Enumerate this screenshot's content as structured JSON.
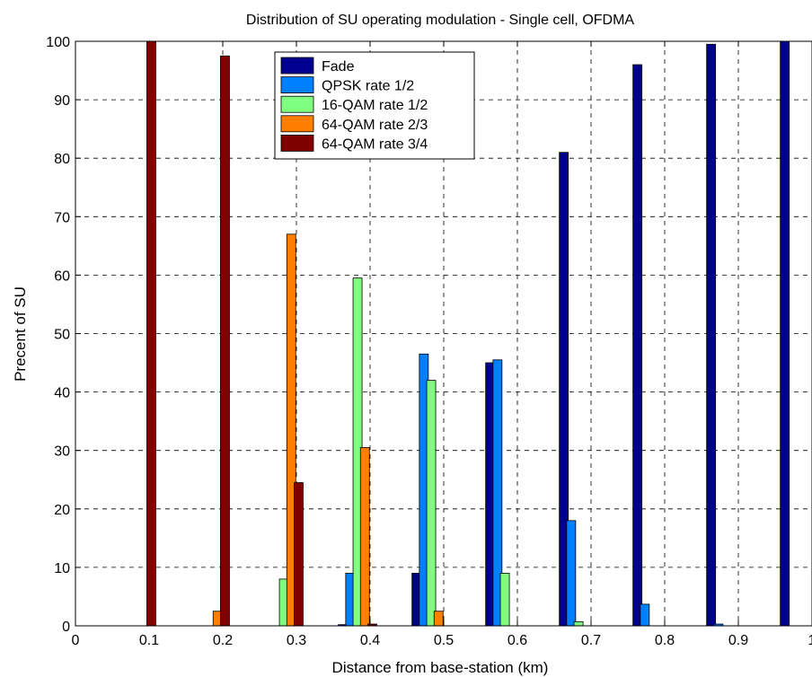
{
  "chart_data": {
    "type": "bar",
    "title": "Distribution of SU operating modulation - Single cell, OFDMA",
    "xlabel": "Distance from base-station (km)",
    "ylabel": "Precent of SU",
    "xlim": [
      0,
      1
    ],
    "ylim": [
      0,
      100
    ],
    "x_ticks": [
      "0",
      "0.1",
      "0.2",
      "0.3",
      "0.4",
      "0.5",
      "0.6",
      "0.7",
      "0.8",
      "0.9",
      "1"
    ],
    "y_ticks": [
      "0",
      "10",
      "20",
      "30",
      "40",
      "50",
      "60",
      "70",
      "80",
      "90",
      "100"
    ],
    "grid": true,
    "legend_position": "top-center",
    "categories": [
      0.083,
      0.183,
      0.283,
      0.383,
      0.483,
      0.583,
      0.683,
      0.783,
      0.883,
      0.983
    ],
    "series": [
      {
        "name": "Fade",
        "color": "#00008F",
        "values": [
          0,
          0,
          0,
          0.2,
          9,
          45,
          81,
          96,
          99.5,
          100
        ]
      },
      {
        "name": "QPSK rate 1/2",
        "color": "#0080FF",
        "values": [
          0,
          0,
          0,
          9,
          46.5,
          45.5,
          18,
          3.7,
          0.3,
          0
        ]
      },
      {
        "name": "16-QAM rate 1/2",
        "color": "#80FF80",
        "values": [
          0,
          0,
          8,
          59.5,
          42,
          9,
          0.7,
          0,
          0,
          0
        ]
      },
      {
        "name": "64-QAM rate 2/3",
        "color": "#FF8000",
        "values": [
          0,
          2.5,
          67,
          30.5,
          2.5,
          0,
          0,
          0,
          0,
          0
        ]
      },
      {
        "name": "64-QAM rate 3/4",
        "color": "#800000",
        "values": [
          100,
          97.5,
          24.5,
          0.3,
          0,
          0,
          0,
          0,
          0,
          0
        ]
      }
    ]
  }
}
